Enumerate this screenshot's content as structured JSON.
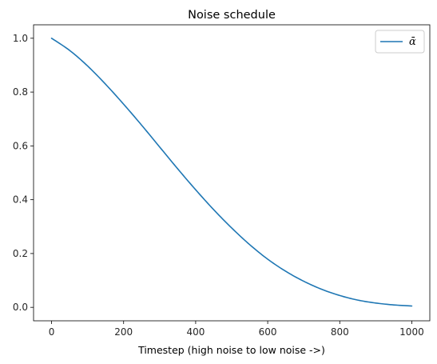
{
  "chart_data": {
    "type": "line",
    "title": "Noise schedule",
    "xlabel": "Timestep (high noise to low noise ->)",
    "ylabel": "",
    "xlim": [
      -50,
      1050
    ],
    "ylim": [
      -0.05,
      1.05
    ],
    "x_ticks": [
      0,
      200,
      400,
      600,
      800,
      1000
    ],
    "y_ticks": [
      0.0,
      0.2,
      0.4,
      0.6,
      0.8,
      1.0
    ],
    "x_tick_labels": [
      "0",
      "200",
      "400",
      "600",
      "800",
      "1000"
    ],
    "y_tick_labels": [
      "0.0",
      "0.2",
      "0.4",
      "0.6",
      "0.8",
      "1.0"
    ],
    "grid": false,
    "legend_position": "top-right",
    "series": [
      {
        "name": "ᾱ",
        "color": "#1f77b4",
        "x": [
          0,
          50,
          100,
          150,
          200,
          250,
          300,
          350,
          400,
          450,
          500,
          550,
          600,
          650,
          700,
          750,
          800,
          850,
          900,
          950,
          1000
        ],
        "y": [
          1.0,
          0.955,
          0.897,
          0.829,
          0.755,
          0.677,
          0.596,
          0.515,
          0.437,
          0.363,
          0.295,
          0.233,
          0.179,
          0.134,
          0.097,
          0.067,
          0.044,
          0.027,
          0.016,
          0.009,
          0.005
        ]
      }
    ]
  }
}
